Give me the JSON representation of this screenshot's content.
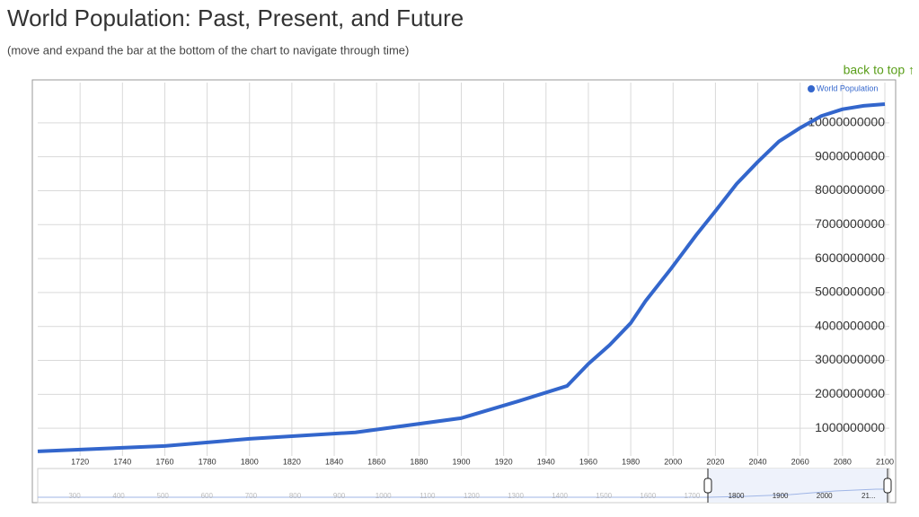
{
  "chart_data": {
    "type": "line",
    "title": "World Population: Past, Present, and Future",
    "subtitle": "(move and expand the bar at the bottom of the chart to navigate through time)",
    "x": [
      1700,
      1760,
      1800,
      1850,
      1900,
      1927,
      1950,
      1960,
      1970,
      1980,
      1987,
      1999,
      2011,
      2020,
      2030,
      2040,
      2050,
      2060,
      2070,
      2080,
      2090,
      2100
    ],
    "series": [
      {
        "name": "World Population",
        "color": "#3366cc",
        "values": [
          320000000,
          480000000,
          690000000,
          880000000,
          1300000000,
          1800000000,
          2250000000,
          2900000000,
          3450000000,
          4100000000,
          4750000000,
          5700000000,
          6700000000,
          7400000000,
          8200000000,
          8850000000,
          9450000000,
          9850000000,
          10200000000,
          10400000000,
          10500000000,
          10550000000
        ]
      }
    ],
    "xlim": [
      1700,
      2100
    ],
    "xticks": [
      1720,
      1740,
      1760,
      1780,
      1800,
      1820,
      1840,
      1860,
      1880,
      1900,
      1920,
      1940,
      1960,
      1980,
      2000,
      2020,
      2040,
      2060,
      2080,
      2100
    ],
    "ylim": [
      0,
      11000000000
    ],
    "yticks": [
      1000000000,
      2000000000,
      3000000000,
      4000000000,
      5000000000,
      6000000000,
      7000000000,
      8000000000,
      9000000000,
      10000000000
    ],
    "grid": true,
    "legend": "top-right",
    "navigator_labels": [
      "300",
      "400",
      "500",
      "600",
      "700",
      "800",
      "900",
      "1000",
      "1100",
      "1200",
      "1300",
      "1400",
      "1500",
      "1600",
      "1700",
      "1800",
      "1900",
      "2000",
      "21..."
    ]
  },
  "nav": {
    "back_to_top": "back to top ↑"
  }
}
